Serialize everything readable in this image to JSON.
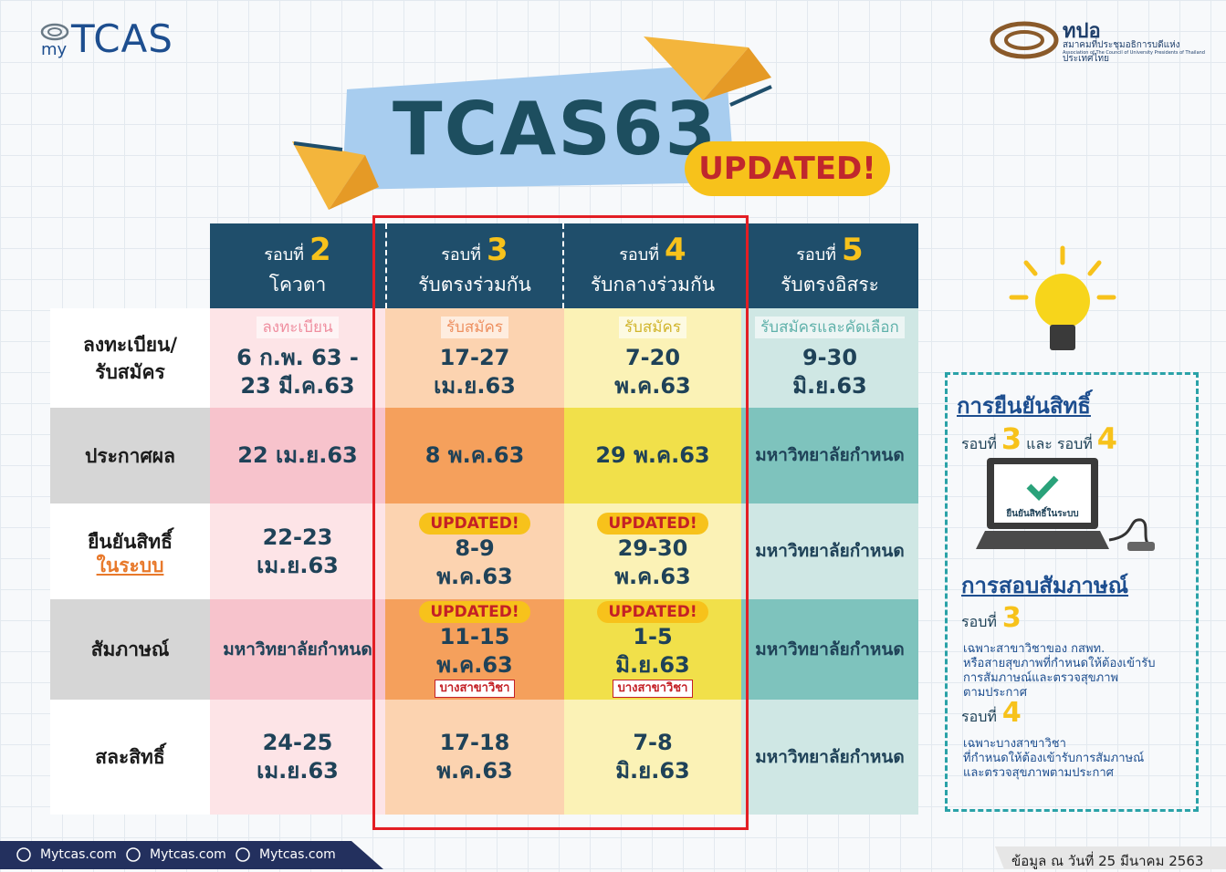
{
  "header": {
    "logo_prefix": "my",
    "logo": "TCAS",
    "org_abbr": "ทปอ",
    "org_name_th": "สมาคมที่ประชุมอธิการบดีแห่งประเทศไทย",
    "org_name_en": "Association of The Council of University Presidents of Thailand",
    "title": "TCAS63",
    "badge": "UPDATED!"
  },
  "table": {
    "columns": [
      {
        "prefix": "รอบที่",
        "number": "2",
        "name": "โควตา"
      },
      {
        "prefix": "รอบที่",
        "number": "3",
        "name": "รับตรงร่วมกัน"
      },
      {
        "prefix": "รอบที่",
        "number": "4",
        "name": "รับกลางร่วมกัน"
      },
      {
        "prefix": "รอบที่",
        "number": "5",
        "name": "รับตรงอิสระ"
      }
    ],
    "row_labels": [
      {
        "lines": [
          "ลงทะเบียน/",
          "รับสมัคร"
        ]
      },
      {
        "lines": [
          "ประกาศผล"
        ]
      },
      {
        "lines": [
          "ยืนยันสิทธิ์"
        ],
        "emphasis": "ในระบบ"
      },
      {
        "lines": [
          "สัมภาษณ์"
        ]
      },
      {
        "lines": [
          "สละสิทธิ์"
        ]
      }
    ],
    "rows": [
      [
        {
          "sub": "ลงทะเบียน",
          "lines": [
            "6 ก.พ. 63 -",
            "23 มี.ค.63"
          ]
        },
        {
          "sub": "รับสมัคร",
          "lines": [
            "17-27",
            "เม.ย.63"
          ]
        },
        {
          "sub": "รับสมัคร",
          "lines": [
            "7-20",
            "พ.ค.63"
          ]
        },
        {
          "sub": "รับสมัครและคัดเลือก",
          "lines": [
            "9-30",
            "มิ.ย.63"
          ]
        }
      ],
      [
        {
          "lines": [
            "22 เม.ย.63"
          ]
        },
        {
          "lines": [
            "8 พ.ค.63"
          ]
        },
        {
          "lines": [
            "29 พ.ค.63"
          ]
        },
        {
          "lines": [
            "มหาวิทยาลัยกำหนด"
          ]
        }
      ],
      [
        {
          "lines": [
            "22-23",
            "เม.ย.63"
          ]
        },
        {
          "badge": "UPDATED!",
          "lines": [
            "8-9",
            "พ.ค.63"
          ]
        },
        {
          "badge": "UPDATED!",
          "lines": [
            "29-30",
            "พ.ค.63"
          ]
        },
        {
          "lines": [
            "มหาวิทยาลัยกำหนด"
          ]
        }
      ],
      [
        {
          "lines": [
            "มหาวิทยาลัยกำหนด"
          ]
        },
        {
          "badge": "UPDATED!",
          "lines": [
            "11-15",
            "พ.ค.63"
          ],
          "note": "บางสาขาวิชา"
        },
        {
          "badge": "UPDATED!",
          "lines": [
            "1-5",
            "มิ.ย.63"
          ],
          "note": "บางสาขาวิชา"
        },
        {
          "lines": [
            "มหาวิทยาลัยกำหนด"
          ]
        }
      ],
      [
        {
          "lines": [
            "24-25",
            "เม.ย.63"
          ]
        },
        {
          "lines": [
            "17-18",
            "พ.ค.63"
          ]
        },
        {
          "lines": [
            "7-8",
            "มิ.ย.63"
          ]
        },
        {
          "lines": [
            "มหาวิทยาลัยกำหนด"
          ]
        }
      ]
    ]
  },
  "panel": {
    "confirm_title": "การยืนยันสิทธิ์",
    "confirm_caption": [
      "รอบที่",
      "3",
      "และ",
      "รอบที่",
      "4"
    ],
    "screen_text": "ยืนยันสิทธิ์ในระบบ",
    "interview_title": "การสอบสัมภาษณ์",
    "interview_items": [
      {
        "prefix": "รอบที่",
        "number": "3",
        "lines": [
          "เฉพาะสาขาวิชาของ กสพท.",
          "หรือสายสุขภาพที่กำหนดให้ต้องเข้ารับ",
          "การสัมภาษณ์และตรวจสุขภาพ",
          "ตามประกาศ"
        ]
      },
      {
        "prefix": "รอบที่",
        "number": "4",
        "lines": [
          "เฉพาะบางสาขาวิชา",
          "ที่กำหนดให้ต้องเข้ารับการสัมภาษณ์",
          "และตรวจสุขภาพตามประกาศ"
        ]
      }
    ]
  },
  "footer": {
    "links": [
      "Mytcas.com",
      "Mytcas.com",
      "Mytcas.com"
    ],
    "as_of": "ข้อมูล ณ วันที่ 25 มีนาคม 2563"
  }
}
